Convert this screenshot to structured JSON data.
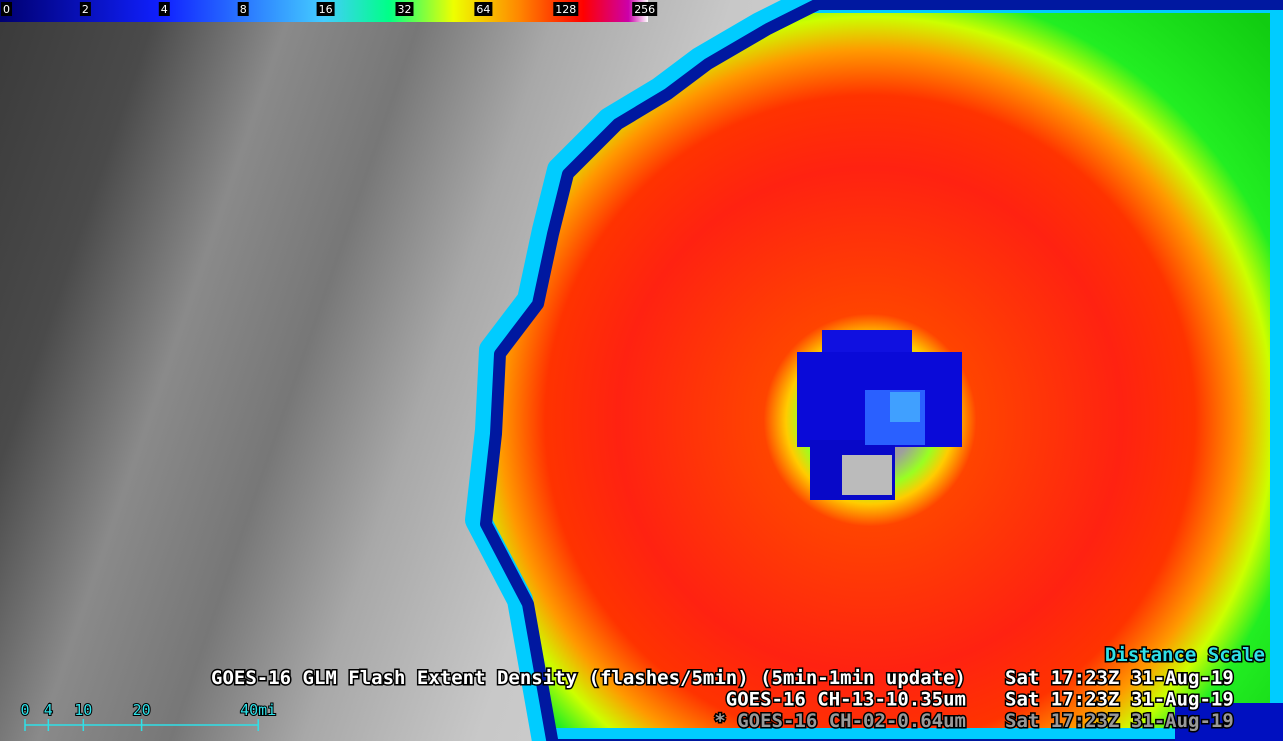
{
  "colorbar": {
    "ticks": [
      0,
      2,
      4,
      8,
      16,
      32,
      64,
      128,
      256
    ]
  },
  "legend": {
    "distance_scale": "Distance Scale",
    "lines": [
      {
        "product": "GOES-16 GLM Flash Extent Density (flashes/5min) (5min-1min update)",
        "time": "Sat 17:23Z 31-Aug-19"
      },
      {
        "product": "GOES-16 CH-13-10.35um",
        "time": "Sat 17:23Z 31-Aug-19"
      },
      {
        "product": "* GOES-16 CH-02-0.64um",
        "time": "Sat 17:23Z 31-Aug-19"
      }
    ]
  },
  "scale_bar": {
    "ticks": [
      0,
      4,
      10,
      20,
      {
        "value": 40,
        "label": "40mi"
      }
    ]
  }
}
